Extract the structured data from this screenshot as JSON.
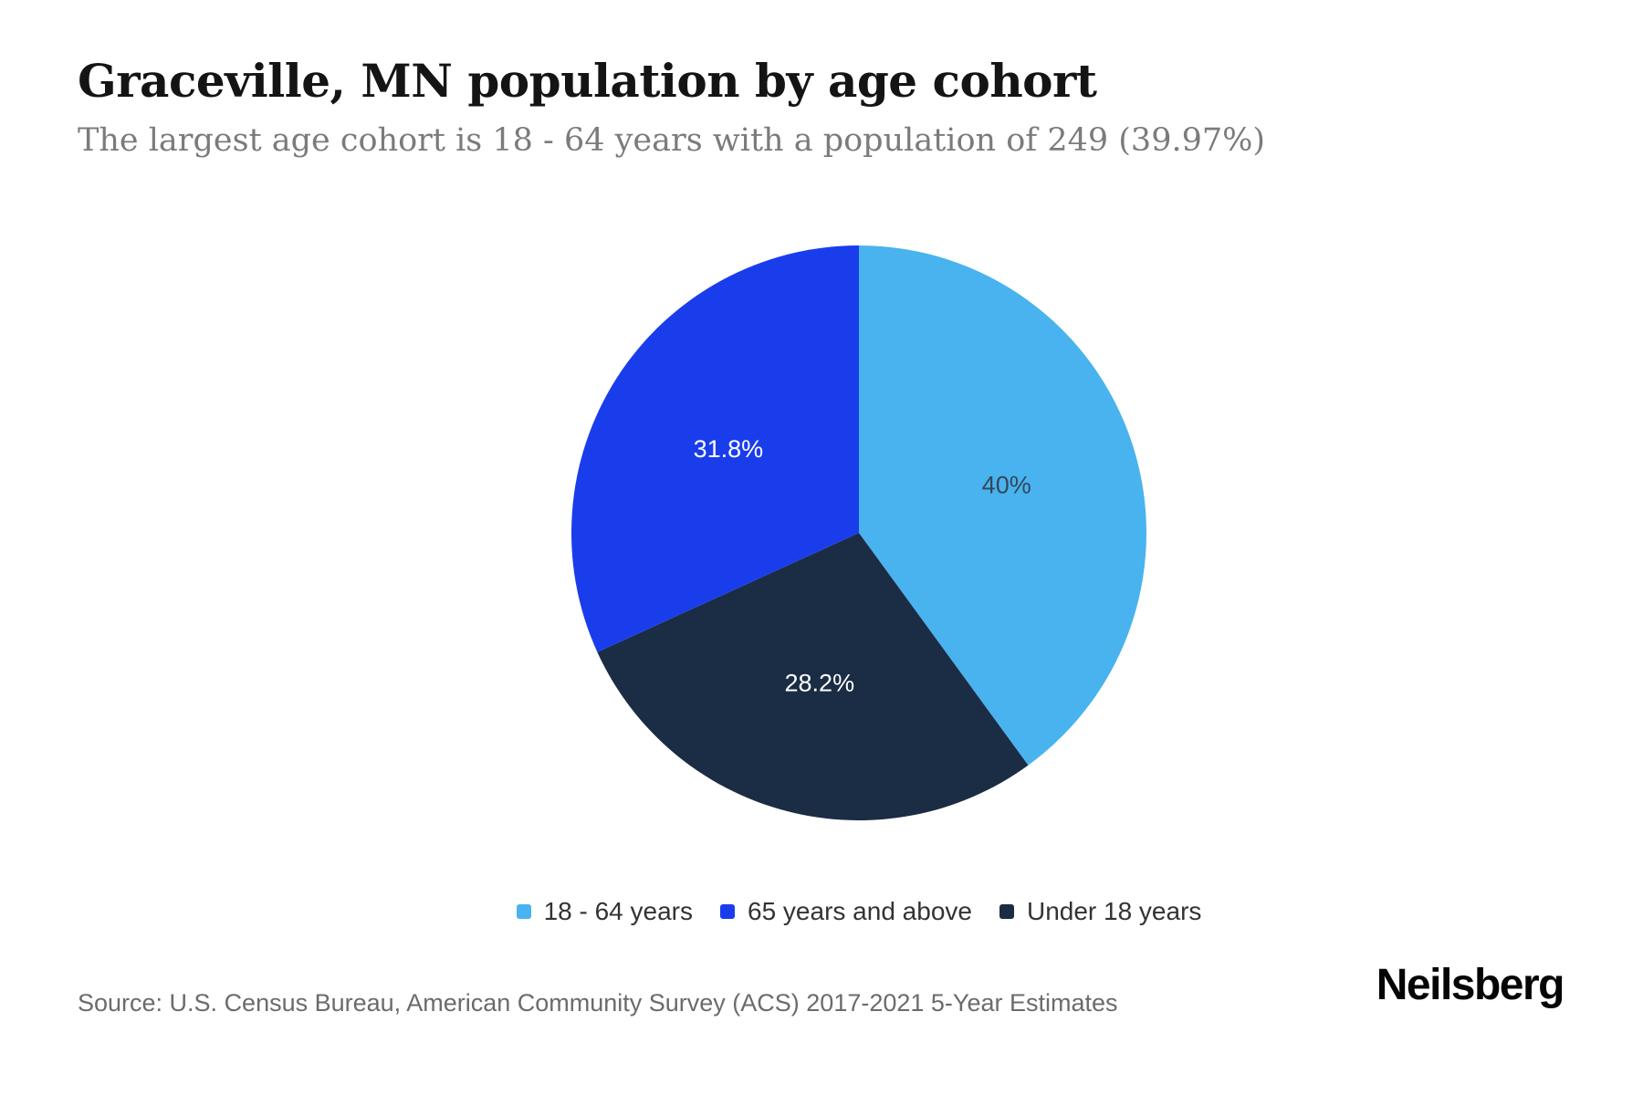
{
  "header": {
    "title": "Graceville, MN population by age cohort",
    "subtitle": "The largest age cohort is 18 - 64 years with a population of 249 (39.97%)"
  },
  "chart_data": {
    "type": "pie",
    "title": "Graceville, MN population by age cohort",
    "subtitle": "The largest age cohort is 18 - 64 years with a population of 249 (39.97%)",
    "start_angle_deg": 0,
    "direction": "clockwise",
    "slices_draw_order": [
      {
        "label": "18 - 64 years",
        "value_pct": 39.97,
        "data_label": "40%",
        "color": "#49b3ef",
        "data_label_color": "#33475b"
      },
      {
        "label": "Under 18 years",
        "value_pct": 28.2,
        "data_label": "28.2%",
        "color": "#1b2c45",
        "data_label_color": "#ffffff"
      },
      {
        "label": "65 years and above",
        "value_pct": 31.8,
        "data_label": "31.8%",
        "color": "#1a3dec",
        "data_label_color": "#ffffff"
      }
    ],
    "legend_position": "bottom"
  },
  "legend": {
    "items": [
      {
        "label": "18 - 64 years",
        "color": "#49b3ef"
      },
      {
        "label": "65 years and above",
        "color": "#1a3dec"
      },
      {
        "label": "Under 18 years",
        "color": "#1b2c45"
      }
    ]
  },
  "footer": {
    "source": "Source: U.S. Census Bureau, American Community Survey (ACS) 2017-2021 5-Year Estimates",
    "brand": "Neilsberg"
  }
}
